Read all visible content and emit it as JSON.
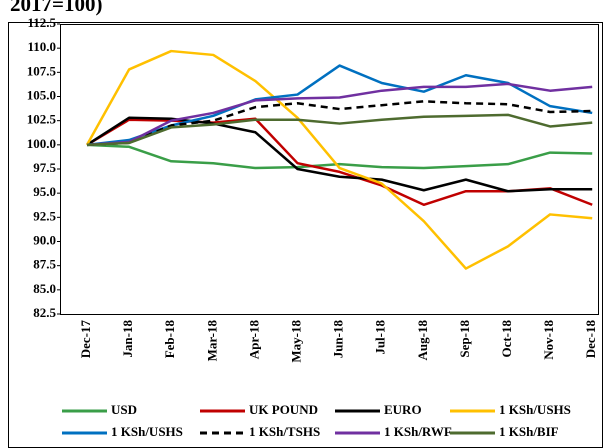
{
  "chart_data": {
    "type": "line",
    "title": "2017=100)",
    "categories": [
      "Dec-17",
      "Jan-18",
      "Feb-18",
      "Mar-18",
      "Apr-18",
      "May-18",
      "Jun-18",
      "Jul-18",
      "Aug-18",
      "Sep-18",
      "Oct-18",
      "Nov-18",
      "Dec-18"
    ],
    "ylim": [
      82.5,
      112.5
    ],
    "yticks": [
      {
        "value": 82.5,
        "label": "82.5"
      },
      {
        "value": 85,
        "label": "85.0"
      },
      {
        "value": 87.5,
        "label": "87.5"
      },
      {
        "value": 90,
        "label": "90.0"
      },
      {
        "value": 92.5,
        "label": "92.5"
      },
      {
        "value": 95,
        "label": "95.0"
      },
      {
        "value": 97.5,
        "label": "97.5"
      },
      {
        "value": 100,
        "label": "100.0"
      },
      {
        "value": 102.5,
        "label": "102.5"
      },
      {
        "value": 105,
        "label": "105.0"
      },
      {
        "value": 107.5,
        "label": "107.5"
      },
      {
        "value": 110,
        "label": "110.0"
      },
      {
        "value": 112.5,
        "label": "112.5"
      }
    ],
    "grid": false,
    "series": [
      {
        "name": "USD",
        "color": "#3a9e48",
        "values": [
          100,
          99.8,
          98.3,
          98.1,
          97.6,
          97.7,
          98.0,
          97.7,
          97.6,
          97.8,
          98.0,
          99.2,
          99.1
        ]
      },
      {
        "name": "UK POUND",
        "color": "#c00000",
        "values": [
          100,
          102.6,
          102.5,
          102.3,
          102.7,
          98.1,
          97.2,
          95.8,
          93.8,
          95.2,
          95.2,
          95.5,
          93.8
        ]
      },
      {
        "name": "EURO",
        "color": "#000000",
        "values": [
          100,
          102.8,
          102.7,
          102.2,
          101.3,
          97.5,
          96.7,
          96.4,
          95.3,
          96.4,
          95.2,
          95.4,
          95.4
        ]
      },
      {
        "name": "1 KSh/USHS",
        "color": "#ffc000",
        "values": [
          100,
          107.8,
          109.7,
          109.3,
          106.6,
          102.8,
          97.6,
          96.0,
          92.1,
          87.2,
          89.5,
          92.8,
          92.4
        ]
      },
      {
        "name": "1 KSh/USHS",
        "color": "#0070c0",
        "values": [
          100,
          100.5,
          102.0,
          103.0,
          104.7,
          105.2,
          108.2,
          106.4,
          105.5,
          107.2,
          106.4,
          104.0,
          103.3
        ]
      },
      {
        "name": "1 KSh/TSHS",
        "color": "#000000",
        "style": "dashed",
        "values": [
          100,
          100.2,
          102.0,
          102.5,
          103.9,
          104.3,
          103.7,
          104.1,
          104.5,
          104.3,
          104.2,
          103.4,
          103.5
        ]
      },
      {
        "name": "1 KSh/RWF",
        "color": "#7030a0",
        "values": [
          100,
          100.3,
          102.5,
          103.3,
          104.6,
          104.8,
          104.9,
          105.6,
          106.0,
          106.0,
          106.3,
          105.6,
          106.0
        ]
      },
      {
        "name": "1 KSh/BIF",
        "color": "#4e6b2f",
        "values": [
          100,
          100.2,
          101.8,
          102.1,
          102.6,
          102.6,
          102.2,
          102.6,
          102.9,
          103.0,
          103.1,
          101.9,
          102.3
        ]
      }
    ]
  }
}
